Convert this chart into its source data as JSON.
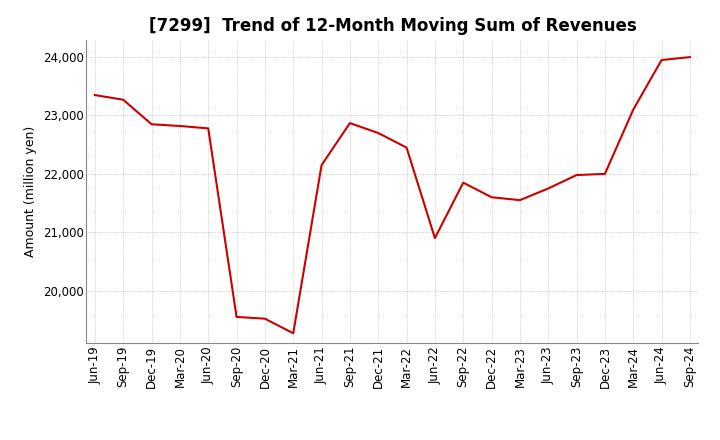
{
  "title": "[7299]  Trend of 12-Month Moving Sum of Revenues",
  "ylabel": "Amount (million yen)",
  "ylim": [
    19100,
    24300
  ],
  "yticks": [
    20000,
    21000,
    22000,
    23000,
    24000
  ],
  "line_color": "#cc0000",
  "background_color": "#ffffff",
  "grid_color": "#aaaaaa",
  "dates": [
    "Jun-19",
    "Sep-19",
    "Dec-19",
    "Mar-20",
    "Jun-20",
    "Sep-20",
    "Dec-20",
    "Mar-21",
    "Jun-21",
    "Sep-21",
    "Dec-21",
    "Mar-22",
    "Jun-22",
    "Sep-22",
    "Dec-22",
    "Mar-23",
    "Jun-23",
    "Sep-23",
    "Dec-23",
    "Mar-24",
    "Jun-24",
    "Sep-24"
  ],
  "values": [
    23350,
    23270,
    22850,
    22820,
    22780,
    19550,
    19520,
    19270,
    22150,
    22870,
    22700,
    22450,
    20900,
    21850,
    21600,
    21550,
    21750,
    21980,
    22000,
    23100,
    23950,
    24000
  ],
  "title_fontsize": 12,
  "tick_fontsize": 8.5,
  "ylabel_fontsize": 9
}
